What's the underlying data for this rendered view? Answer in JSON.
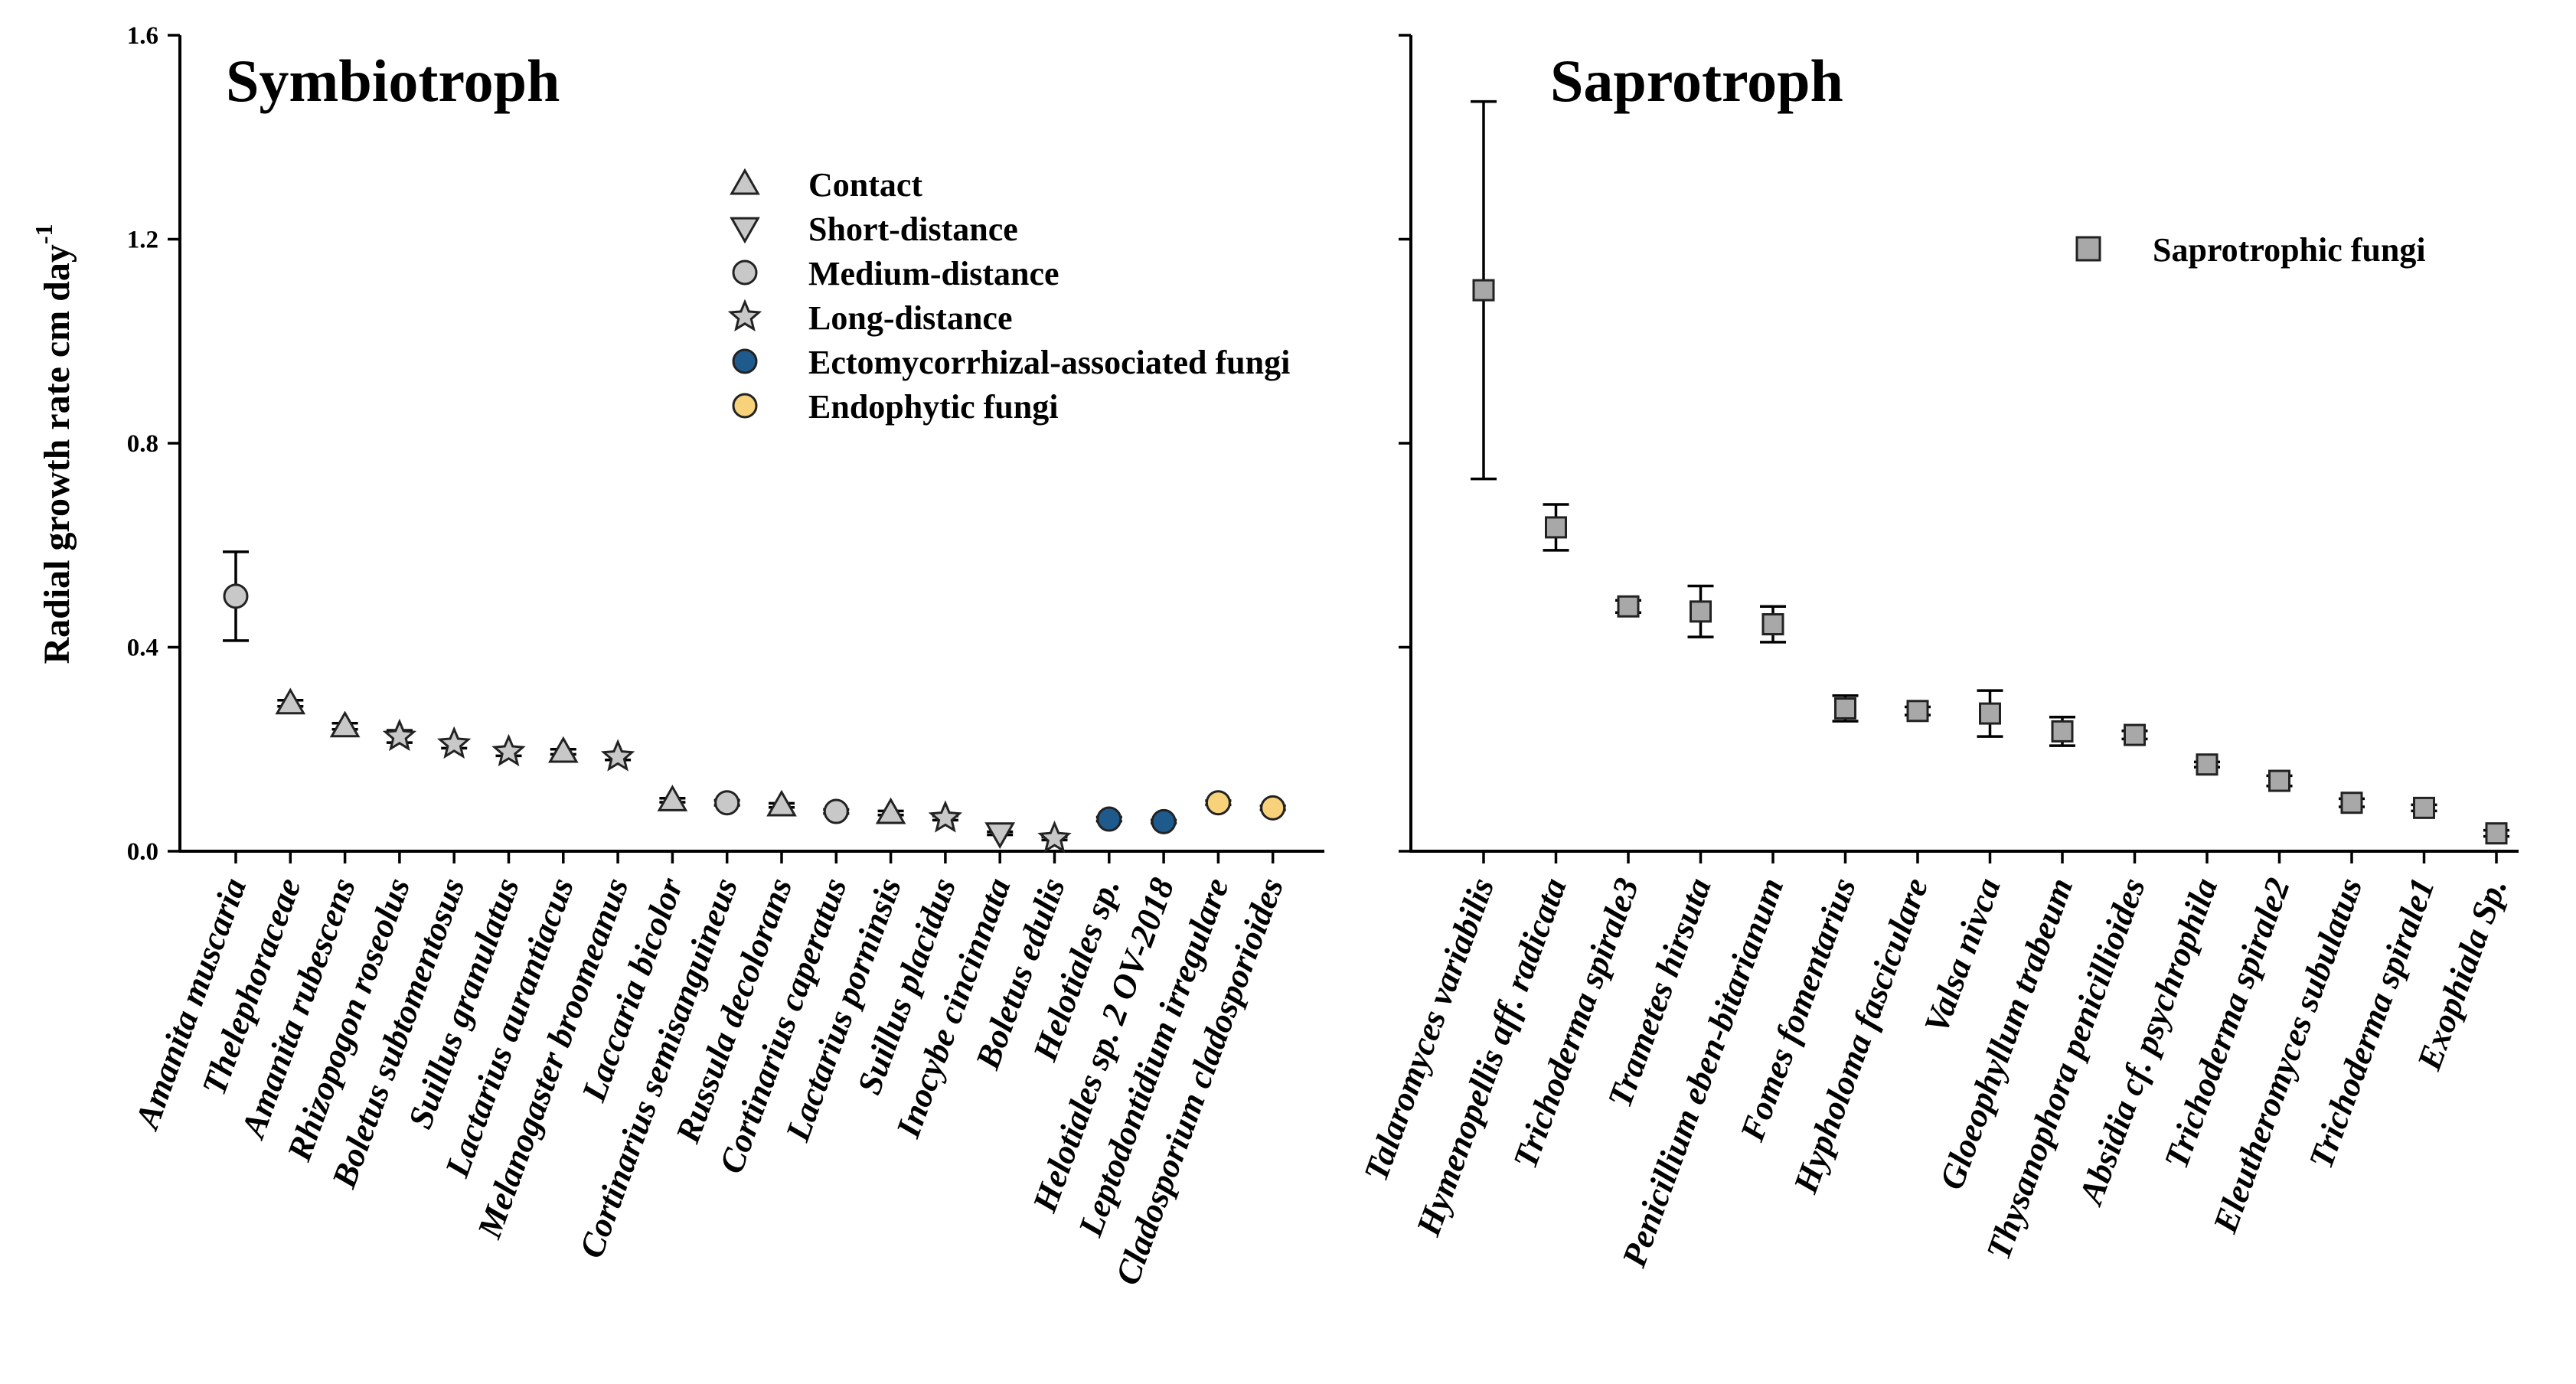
{
  "chart_data": {
    "type": "scatter",
    "ylabel": "Radial growth rate cm day",
    "ylabel_superscript": "-1",
    "ylim": [
      0,
      1.6
    ],
    "yticks": [
      "0.0",
      "0.4",
      "0.8",
      "1.2",
      "1.6"
    ],
    "panels": [
      {
        "title": "Symbiotroph",
        "legend_position": "top-center",
        "legend": [
          {
            "key": "contact",
            "label": "Contact",
            "marker": "triangle-up",
            "color": "#c8c8c8"
          },
          {
            "key": "short",
            "label": "Short-distance",
            "marker": "triangle-down",
            "color": "#c8c8c8"
          },
          {
            "key": "medium",
            "label": "Medium-distance",
            "marker": "circle",
            "color": "#c8c8c8"
          },
          {
            "key": "long",
            "label": "Long-distance",
            "marker": "star",
            "color": "#c8c8c8"
          },
          {
            "key": "ecto",
            "label": "Ectomycorrhizal-associated fungi",
            "marker": "circle",
            "color": "#1f5a8c"
          },
          {
            "key": "endo",
            "label": "Endophytic fungi",
            "marker": "circle",
            "color": "#f7d27a"
          }
        ],
        "points": [
          {
            "name": "Amanita muscaria",
            "value": 0.5,
            "err": 0.087,
            "group": "medium"
          },
          {
            "name": "Thelephoraceae",
            "value": 0.29,
            "err": 0.006,
            "group": "contact"
          },
          {
            "name": "Amanita rubescens",
            "value": 0.245,
            "err": 0.006,
            "group": "contact"
          },
          {
            "name": "Rhizopogon roseolus",
            "value": 0.225,
            "err": 0.012,
            "group": "long"
          },
          {
            "name": "Boletus subtomentosus",
            "value": 0.21,
            "err": 0.008,
            "group": "long"
          },
          {
            "name": "Suillus granulatus",
            "value": 0.195,
            "err": 0.008,
            "group": "long"
          },
          {
            "name": "Lactarius aurantiacus",
            "value": 0.195,
            "err": 0.005,
            "group": "contact"
          },
          {
            "name": "Melanogaster broomeanus",
            "value": 0.185,
            "err": 0.006,
            "group": "long"
          },
          {
            "name": "Laccaria bicolor",
            "value": 0.1,
            "err": 0.004,
            "group": "contact"
          },
          {
            "name": "Cortinarius semisanguineus",
            "value": 0.095,
            "err": 0.005,
            "group": "medium"
          },
          {
            "name": "Russula decolorans",
            "value": 0.09,
            "err": 0.004,
            "group": "contact"
          },
          {
            "name": "Cortinarius caperatus",
            "value": 0.078,
            "err": 0.004,
            "group": "medium"
          },
          {
            "name": "Lactarius porninsis",
            "value": 0.075,
            "err": 0.004,
            "group": "contact"
          },
          {
            "name": "Suillus placidus",
            "value": 0.065,
            "err": 0.004,
            "group": "long"
          },
          {
            "name": "Inocybe cincinnata",
            "value": 0.035,
            "err": 0.003,
            "group": "short"
          },
          {
            "name": "Boletus edulis",
            "value": 0.025,
            "err": 0.003,
            "group": "long"
          },
          {
            "name": "Helotiales sp.",
            "value": 0.063,
            "err": 0.004,
            "group": "ecto"
          },
          {
            "name": "Helotiales sp. 2 OV-2018",
            "value": 0.058,
            "err": 0.003,
            "group": "ecto"
          },
          {
            "name": "Leptodontidium irregulare",
            "value": 0.095,
            "err": 0.004,
            "group": "endo"
          },
          {
            "name": "Cladosporium cladosporioides",
            "value": 0.085,
            "err": 0.004,
            "group": "endo"
          }
        ]
      },
      {
        "title": "Saprotroph",
        "legend_position": "top-right",
        "legend": [
          {
            "key": "sap",
            "label": "Saprotrophic fungi",
            "marker": "square",
            "color": "#a8a8a8"
          }
        ],
        "points": [
          {
            "name": "Talaromyces variabilis",
            "value": 1.1,
            "err": 0.37,
            "group": "sap"
          },
          {
            "name": "Hymenopellis aff. radicata",
            "value": 0.635,
            "err": 0.045,
            "group": "sap"
          },
          {
            "name": "Trichoderma spirale3",
            "value": 0.48,
            "err": 0.012,
            "group": "sap"
          },
          {
            "name": "Trametes hirsuta",
            "value": 0.47,
            "err": 0.05,
            "group": "sap"
          },
          {
            "name": "Penicillium eben-bitarianum",
            "value": 0.445,
            "err": 0.035,
            "group": "sap"
          },
          {
            "name": "Fomes fomentarius",
            "value": 0.28,
            "err": 0.025,
            "group": "sap"
          },
          {
            "name": "Hypholoma fasciculare",
            "value": 0.275,
            "err": 0.008,
            "group": "sap"
          },
          {
            "name": "Valsa nivca",
            "value": 0.27,
            "err": 0.045,
            "group": "sap"
          },
          {
            "name": "Gloeophyllum trabeum",
            "value": 0.235,
            "err": 0.028,
            "group": "sap"
          },
          {
            "name": "Thysanophora penicillioides",
            "value": 0.228,
            "err": 0.008,
            "group": "sap"
          },
          {
            "name": "Absidia cf. psychrophila",
            "value": 0.17,
            "err": 0.005,
            "group": "sap"
          },
          {
            "name": "Trichoderma spirale2",
            "value": 0.138,
            "err": 0.01,
            "group": "sap"
          },
          {
            "name": "Eleutheromyces subulatus",
            "value": 0.095,
            "err": 0.008,
            "group": "sap"
          },
          {
            "name": "Trichoderma spirale1",
            "value": 0.085,
            "err": 0.006,
            "group": "sap"
          },
          {
            "name": "Exophiala Sp.",
            "value": 0.035,
            "err": 0.006,
            "group": "sap"
          }
        ]
      }
    ]
  }
}
